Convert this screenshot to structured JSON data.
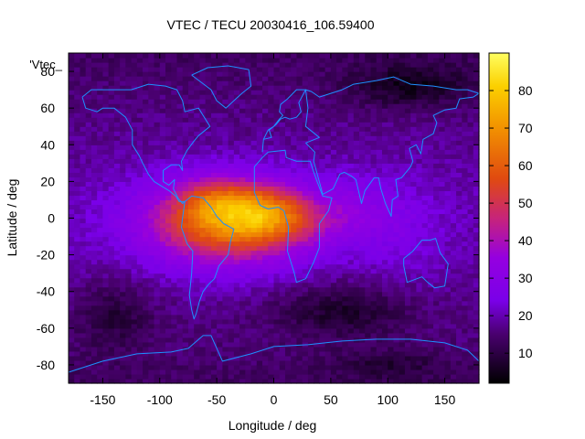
{
  "chart_data": {
    "type": "heatmap",
    "title": "VTEC / TECU 20030416_106.59400",
    "series_label": "'Vtec_",
    "xlabel": "Longitude / deg",
    "ylabel": "Latitude / deg",
    "xlim": [
      -180,
      180
    ],
    "ylim": [
      -90,
      90
    ],
    "x_ticks": [
      -150,
      -100,
      -50,
      0,
      50,
      100,
      150
    ],
    "y_ticks": [
      -80,
      -60,
      -40,
      -20,
      0,
      20,
      40,
      60,
      80
    ],
    "colorbar": {
      "range": [
        2,
        90
      ],
      "ticks": [
        10,
        20,
        30,
        40,
        50,
        60,
        70,
        80
      ]
    },
    "grid_resolution_deg": {
      "lon": 5,
      "lat": 2.5
    },
    "peak_vtec": 88,
    "peak_location": {
      "lon": -12,
      "lat": 2
    },
    "background_vtec": 20
  },
  "colors": {
    "coastline": "#1e90ff",
    "axis": "#000000"
  }
}
